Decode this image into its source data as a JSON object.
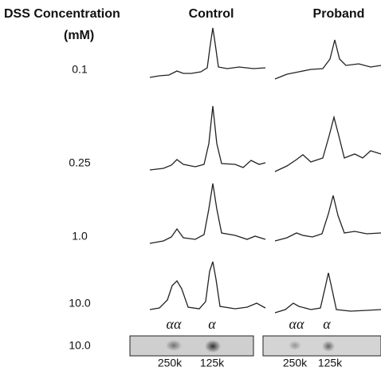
{
  "header": {
    "title_line1": "DSS Concentration",
    "title_line2": "(mM)",
    "columns": [
      "Control",
      "Proband"
    ]
  },
  "rows": [
    {
      "label": "0.1"
    },
    {
      "label": "0.25"
    },
    {
      "label": "1.0"
    },
    {
      "label": "10.0"
    }
  ],
  "peak_labels": {
    "control": [
      "αα",
      "α"
    ],
    "proband": [
      "αα",
      "α"
    ]
  },
  "gel": {
    "label": "10.0",
    "control": [
      "250k",
      "125k"
    ],
    "proband": [
      "250k",
      "125k"
    ]
  }
}
